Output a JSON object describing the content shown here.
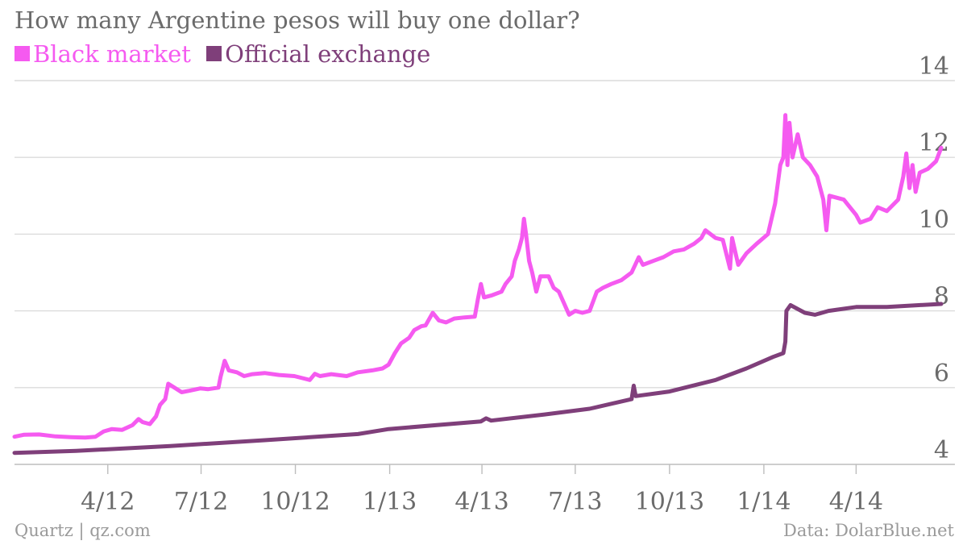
{
  "chart_data": {
    "type": "line",
    "title": "How many Argentine pesos will buy one dollar?",
    "ylim": [
      4,
      14
    ],
    "yticks": [
      4,
      6,
      8,
      10,
      12,
      14
    ],
    "grid": true,
    "legend_position": "top-left",
    "x_range": [
      "2012-01-01",
      "2014-06-01"
    ],
    "x_ticks": [
      {
        "date": "2012-04-01",
        "label": "4/12"
      },
      {
        "date": "2012-07-01",
        "label": "7/12"
      },
      {
        "date": "2012-10-01",
        "label": "10/12"
      },
      {
        "date": "2013-01-01",
        "label": "1/13"
      },
      {
        "date": "2013-04-01",
        "label": "4/13"
      },
      {
        "date": "2013-07-01",
        "label": "7/13"
      },
      {
        "date": "2013-10-01",
        "label": "10/13"
      },
      {
        "date": "2014-01-01",
        "label": "1/14"
      },
      {
        "date": "2014-04-01",
        "label": "4/14"
      }
    ],
    "series": [
      {
        "name": "Black market",
        "color": "#f55af0",
        "points": [
          [
            "2012-01-01",
            4.72
          ],
          [
            "2012-01-10",
            4.77
          ],
          [
            "2012-01-25",
            4.78
          ],
          [
            "2012-02-10",
            4.73
          ],
          [
            "2012-02-25",
            4.71
          ],
          [
            "2012-03-10",
            4.7
          ],
          [
            "2012-03-20",
            4.72
          ],
          [
            "2012-03-28",
            4.86
          ],
          [
            "2012-04-05",
            4.92
          ],
          [
            "2012-04-15",
            4.9
          ],
          [
            "2012-04-25",
            5.02
          ],
          [
            "2012-05-01",
            5.18
          ],
          [
            "2012-05-05",
            5.1
          ],
          [
            "2012-05-12",
            5.05
          ],
          [
            "2012-05-18",
            5.25
          ],
          [
            "2012-05-22",
            5.55
          ],
          [
            "2012-05-27",
            5.7
          ],
          [
            "2012-05-30",
            6.1
          ],
          [
            "2012-06-05",
            6.0
          ],
          [
            "2012-06-12",
            5.88
          ],
          [
            "2012-06-20",
            5.92
          ],
          [
            "2012-06-30",
            5.98
          ],
          [
            "2012-07-08",
            5.96
          ],
          [
            "2012-07-18",
            6.0
          ],
          [
            "2012-07-20",
            6.28
          ],
          [
            "2012-07-24",
            6.7
          ],
          [
            "2012-07-28",
            6.45
          ],
          [
            "2012-08-05",
            6.4
          ],
          [
            "2012-08-12",
            6.3
          ],
          [
            "2012-08-20",
            6.35
          ],
          [
            "2012-09-01",
            6.38
          ],
          [
            "2012-09-15",
            6.33
          ],
          [
            "2012-09-30",
            6.3
          ],
          [
            "2012-10-15",
            6.2
          ],
          [
            "2012-10-20",
            6.36
          ],
          [
            "2012-10-25",
            6.3
          ],
          [
            "2012-11-05",
            6.35
          ],
          [
            "2012-11-20",
            6.3
          ],
          [
            "2012-12-01",
            6.4
          ],
          [
            "2012-12-15",
            6.45
          ],
          [
            "2012-12-25",
            6.5
          ],
          [
            "2012-12-31",
            6.6
          ],
          [
            "2013-01-06",
            6.9
          ],
          [
            "2013-01-12",
            7.15
          ],
          [
            "2013-01-20",
            7.3
          ],
          [
            "2013-01-25",
            7.5
          ],
          [
            "2013-02-01",
            7.6
          ],
          [
            "2013-02-05",
            7.62
          ],
          [
            "2013-02-12",
            7.95
          ],
          [
            "2013-02-18",
            7.75
          ],
          [
            "2013-02-25",
            7.7
          ],
          [
            "2013-03-05",
            7.8
          ],
          [
            "2013-03-15",
            7.83
          ],
          [
            "2013-03-25",
            7.85
          ],
          [
            "2013-03-28",
            8.3
          ],
          [
            "2013-03-31",
            8.7
          ],
          [
            "2013-04-03",
            8.35
          ],
          [
            "2013-04-10",
            8.4
          ],
          [
            "2013-04-20",
            8.5
          ],
          [
            "2013-04-24",
            8.7
          ],
          [
            "2013-04-30",
            8.9
          ],
          [
            "2013-05-03",
            9.3
          ],
          [
            "2013-05-07",
            9.6
          ],
          [
            "2013-05-10",
            9.9
          ],
          [
            "2013-05-12",
            10.4
          ],
          [
            "2013-05-14",
            10.0
          ],
          [
            "2013-05-17",
            9.3
          ],
          [
            "2013-05-20",
            9.0
          ],
          [
            "2013-05-24",
            8.5
          ],
          [
            "2013-05-28",
            8.9
          ],
          [
            "2013-06-05",
            8.9
          ],
          [
            "2013-06-10",
            8.6
          ],
          [
            "2013-06-15",
            8.5
          ],
          [
            "2013-06-20",
            8.2
          ],
          [
            "2013-06-25",
            7.9
          ],
          [
            "2013-07-01",
            8.0
          ],
          [
            "2013-07-08",
            7.95
          ],
          [
            "2013-07-15",
            8.0
          ],
          [
            "2013-07-22",
            8.5
          ],
          [
            "2013-07-28",
            8.6
          ],
          [
            "2013-08-05",
            8.7
          ],
          [
            "2013-08-15",
            8.8
          ],
          [
            "2013-08-25",
            9.0
          ],
          [
            "2013-09-01",
            9.4
          ],
          [
            "2013-09-05",
            9.2
          ],
          [
            "2013-09-15",
            9.3
          ],
          [
            "2013-09-25",
            9.4
          ],
          [
            "2013-10-05",
            9.55
          ],
          [
            "2013-10-15",
            9.6
          ],
          [
            "2013-10-25",
            9.75
          ],
          [
            "2013-11-01",
            9.9
          ],
          [
            "2013-11-05",
            10.1
          ],
          [
            "2013-11-15",
            9.9
          ],
          [
            "2013-11-22",
            9.85
          ],
          [
            "2013-11-29",
            9.1
          ],
          [
            "2013-12-01",
            9.9
          ],
          [
            "2013-12-07",
            9.2
          ],
          [
            "2013-12-15",
            9.5
          ],
          [
            "2013-12-25",
            9.75
          ],
          [
            "2014-01-05",
            10.0
          ],
          [
            "2014-01-12",
            10.8
          ],
          [
            "2014-01-17",
            11.8
          ],
          [
            "2014-01-20",
            12.0
          ],
          [
            "2014-01-22",
            13.1
          ],
          [
            "2014-01-24",
            11.8
          ],
          [
            "2014-01-26",
            12.9
          ],
          [
            "2014-01-29",
            12.0
          ],
          [
            "2014-02-03",
            12.6
          ],
          [
            "2014-02-08",
            12.0
          ],
          [
            "2014-02-15",
            11.8
          ],
          [
            "2014-02-22",
            11.5
          ],
          [
            "2014-02-28",
            10.9
          ],
          [
            "2014-03-03",
            10.1
          ],
          [
            "2014-03-06",
            11.0
          ],
          [
            "2014-03-20",
            10.9
          ],
          [
            "2014-04-01",
            10.5
          ],
          [
            "2014-04-05",
            10.3
          ],
          [
            "2014-04-15",
            10.4
          ],
          [
            "2014-04-22",
            10.7
          ],
          [
            "2014-05-01",
            10.6
          ],
          [
            "2014-05-12",
            10.9
          ],
          [
            "2014-05-17",
            11.5
          ],
          [
            "2014-05-20",
            12.1
          ],
          [
            "2014-05-23",
            11.2
          ],
          [
            "2014-05-26",
            11.8
          ],
          [
            "2014-05-29",
            11.1
          ],
          [
            "2014-06-02",
            11.6
          ],
          [
            "2014-06-10",
            11.7
          ],
          [
            "2014-06-18",
            11.9
          ],
          [
            "2014-06-23",
            12.25
          ]
        ]
      },
      {
        "name": "Official exchange",
        "color": "#7f3f7a",
        "points": [
          [
            "2012-01-01",
            4.3
          ],
          [
            "2012-03-01",
            4.35
          ],
          [
            "2012-06-01",
            4.48
          ],
          [
            "2012-09-01",
            4.63
          ],
          [
            "2012-12-01",
            4.79
          ],
          [
            "2012-12-31",
            4.92
          ],
          [
            "2013-03-31",
            5.12
          ],
          [
            "2013-04-05",
            5.2
          ],
          [
            "2013-04-10",
            5.14
          ],
          [
            "2013-06-01",
            5.3
          ],
          [
            "2013-07-15",
            5.45
          ],
          [
            "2013-08-25",
            5.7
          ],
          [
            "2013-08-27",
            6.05
          ],
          [
            "2013-08-29",
            5.78
          ],
          [
            "2013-10-01",
            5.9
          ],
          [
            "2013-11-15",
            6.2
          ],
          [
            "2013-12-15",
            6.5
          ],
          [
            "2014-01-10",
            6.8
          ],
          [
            "2014-01-20",
            6.9
          ],
          [
            "2014-01-22",
            7.2
          ],
          [
            "2014-01-23",
            8.0
          ],
          [
            "2014-01-27",
            8.15
          ],
          [
            "2014-02-10",
            7.95
          ],
          [
            "2014-02-20",
            7.9
          ],
          [
            "2014-03-05",
            8.0
          ],
          [
            "2014-04-01",
            8.1
          ],
          [
            "2014-05-01",
            8.1
          ],
          [
            "2014-06-01",
            8.15
          ],
          [
            "2014-06-23",
            8.18
          ]
        ]
      }
    ]
  },
  "footer": {
    "source_left": "Quartz | qz.com",
    "source_right": "Data: DolarBlue.net"
  }
}
